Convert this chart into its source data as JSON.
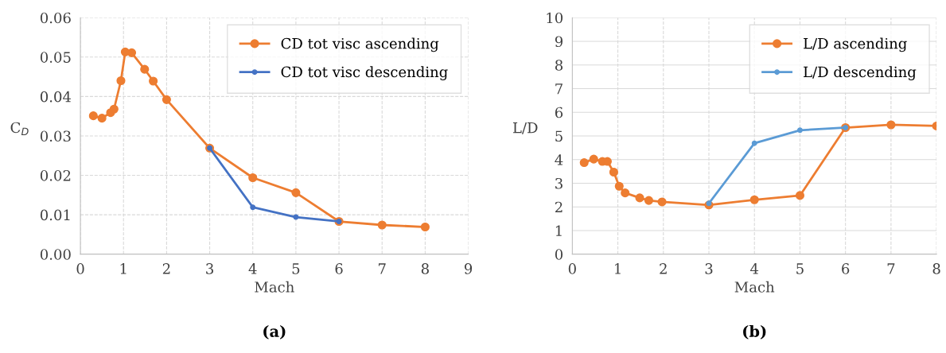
{
  "chart_data": [
    {
      "type": "line",
      "xlabel": "Mach",
      "ylabel": "C$_{D}$",
      "xlim": [
        0,
        9
      ],
      "xticks": [
        0,
        1,
        2,
        3,
        4,
        5,
        6,
        7,
        8,
        9
      ],
      "ylim": [
        0,
        0.06
      ],
      "yticks": [
        {
          "value": 0,
          "label": "0.00"
        },
        {
          "value": 0.01,
          "label": "0.01"
        },
        {
          "value": 0.02,
          "label": "0.02"
        },
        {
          "value": 0.03,
          "label": "0.03"
        },
        {
          "value": 0.04,
          "label": "0.04"
        },
        {
          "value": 0.05,
          "label": "0.05"
        },
        {
          "value": 0.06,
          "label": "0.06"
        }
      ],
      "grid": true,
      "legend": "top right",
      "marker": "circle",
      "annotations": [
        "(a)"
      ],
      "series": [
        {
          "name": "CD tot visc ascending",
          "color": "#ed7d31",
          "x": [
            0.3,
            0.5,
            0.7,
            0.78,
            0.94,
            1.04,
            1.19,
            1.49,
            1.69,
            2,
            3,
            4,
            5,
            6,
            7,
            8
          ],
          "values": [
            0.0351,
            0.0345,
            0.0359,
            0.0368,
            0.044,
            0.0513,
            0.0511,
            0.0469,
            0.0439,
            0.0392,
            0.0269,
            0.0194,
            0.0156,
            0.0083,
            0.0074,
            0.0069
          ]
        },
        {
          "name": "CD tot visc descending",
          "color": "#4472c4",
          "x": [
            3,
            4,
            5,
            6
          ],
          "values": [
            0.0269,
            0.0119,
            0.0094,
            0.0083
          ]
        }
      ]
    },
    {
      "type": "line",
      "xlabel": "Mach",
      "ylabel": "L/D",
      "xlim": [
        0,
        8
      ],
      "xticks": [
        0,
        1,
        2,
        3,
        4,
        5,
        6,
        7,
        8
      ],
      "ylim": [
        0,
        10
      ],
      "yticks": [
        0,
        1,
        2,
        3,
        4,
        5,
        6,
        7,
        8,
        9,
        10
      ],
      "grid": true,
      "legend": "top right",
      "marker": "circle",
      "annotations": [
        "(b)"
      ],
      "series": [
        {
          "name": "L/D ascending",
          "color": "#ed7d31",
          "x": [
            0.26,
            0.47,
            0.66,
            0.77,
            0.91,
            1.03,
            1.16,
            1.48,
            1.68,
            1.97,
            3,
            4,
            5,
            6,
            7,
            8
          ],
          "values": [
            3.87,
            4.02,
            3.92,
            3.92,
            3.47,
            2.87,
            2.59,
            2.38,
            2.27,
            2.21,
            2.08,
            2.3,
            2.48,
            5.35,
            5.47,
            5.42
          ]
        },
        {
          "name": "L/D descending",
          "color": "#5b9bd5",
          "x": [
            3,
            4,
            5,
            6
          ],
          "values": [
            2.15,
            4.69,
            5.24,
            5.35
          ]
        }
      ]
    }
  ]
}
